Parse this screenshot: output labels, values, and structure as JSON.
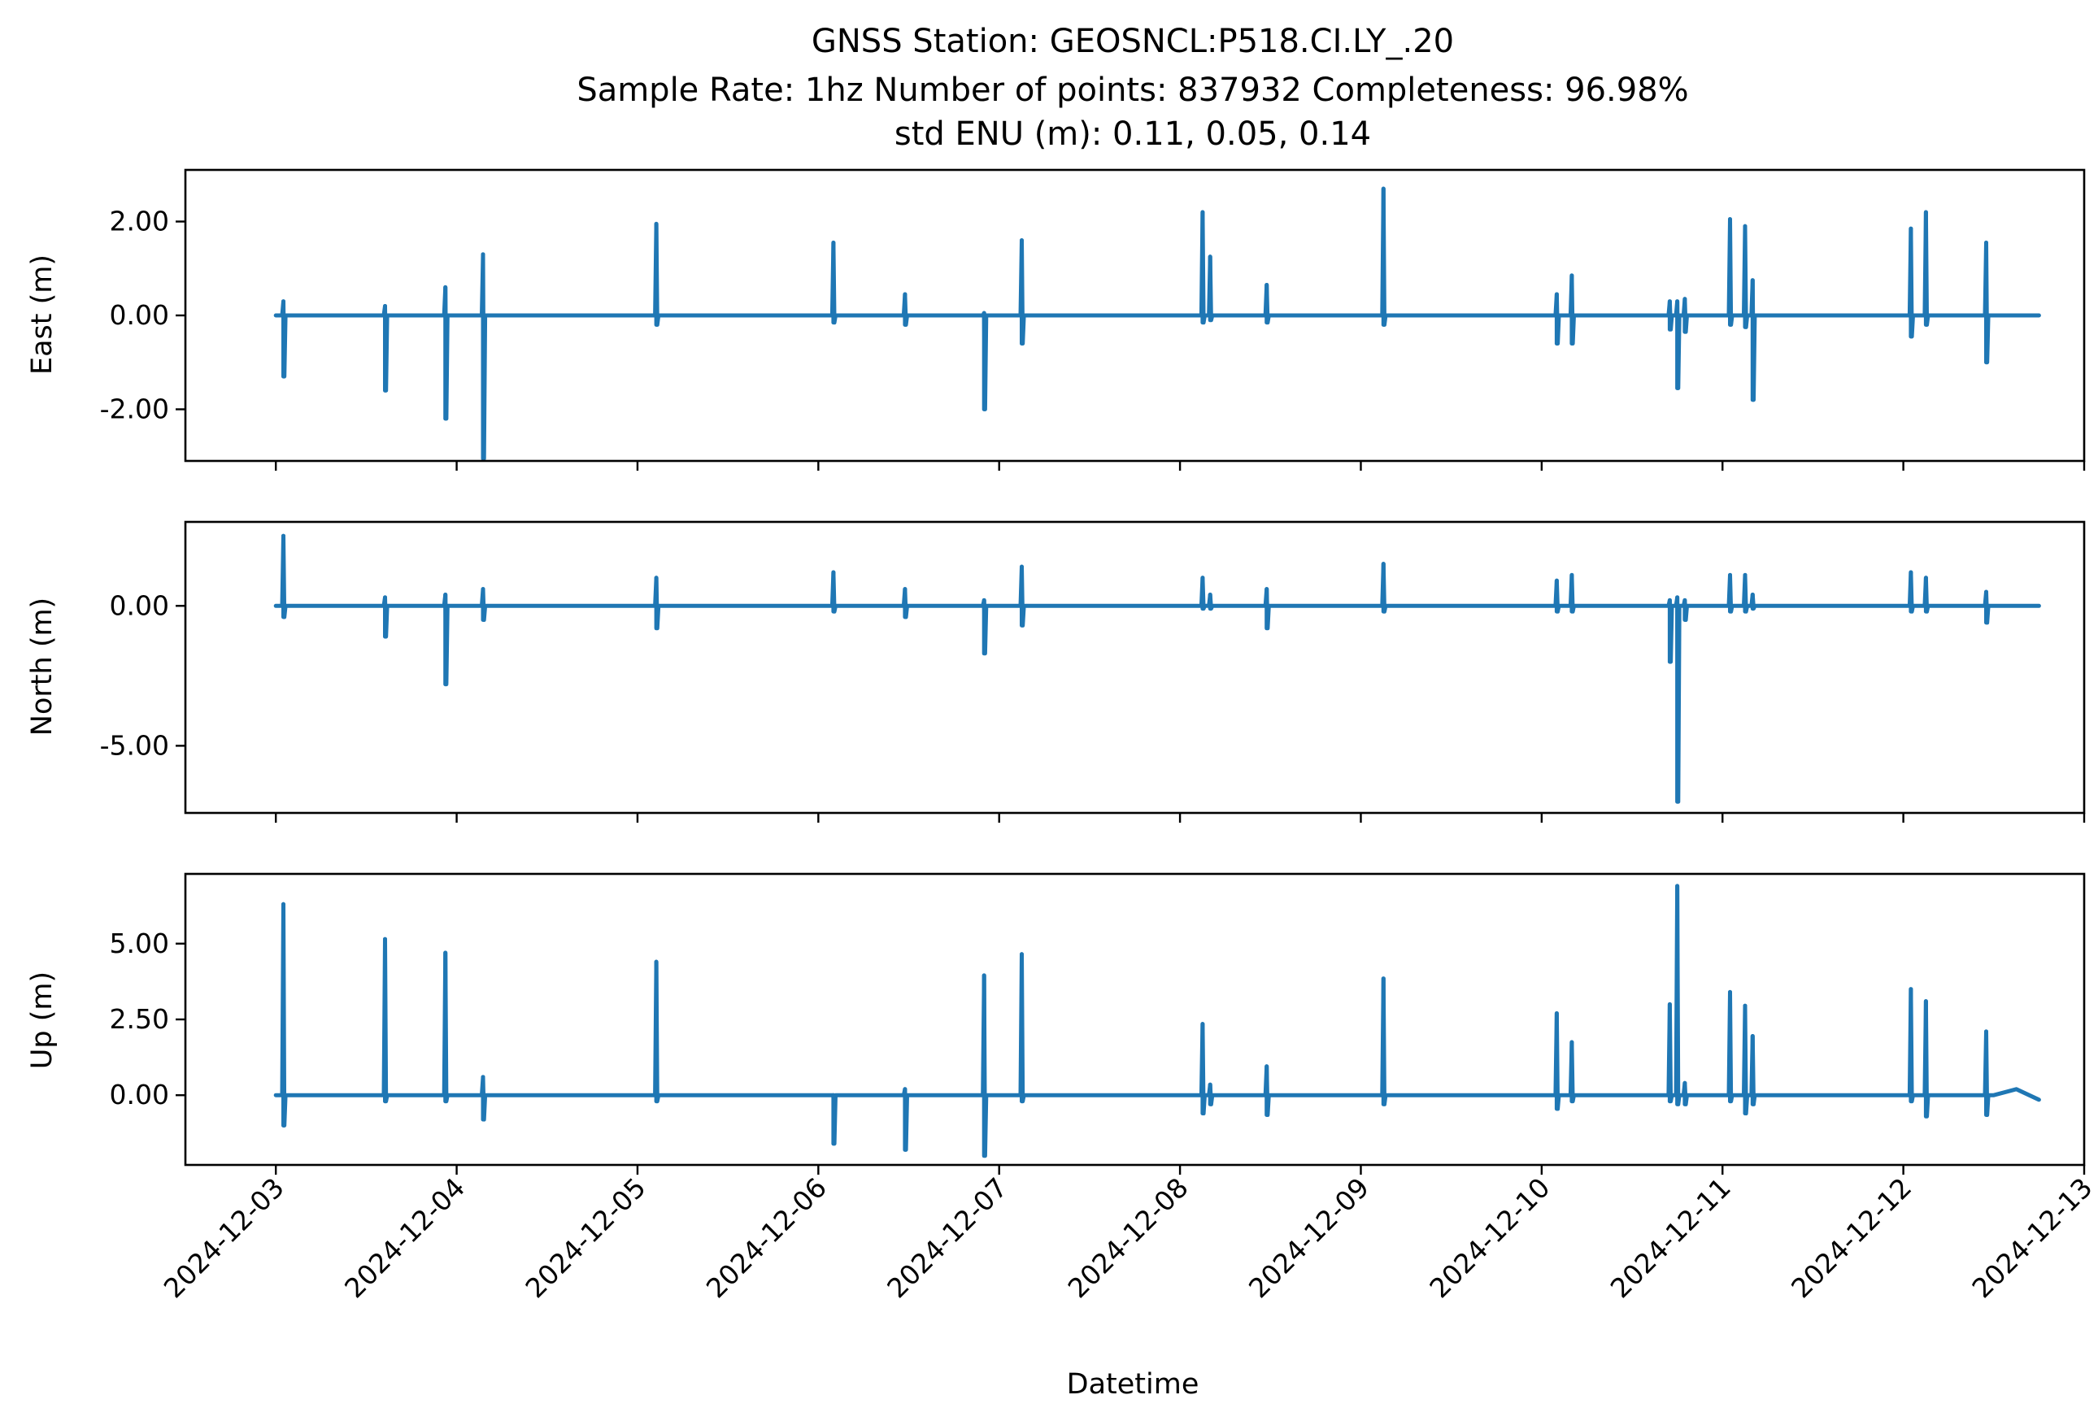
{
  "figure": {
    "title_lines": [
      "GNSS Station: GEOSNCL:P518.CI.LY_.20",
      "Sample Rate: 1hz   Number of points: 837932    Completeness:  96.98%",
      "std ENU (m):  0.11, 0.05, 0.14"
    ],
    "line_color": "#1f77b4"
  },
  "chart_data": [
    {
      "type": "line",
      "panel": "east",
      "ylabel": "East (m)",
      "xlabel": "",
      "ylim": [
        -3.1,
        3.1
      ],
      "yticks": [
        -2.0,
        0.0,
        2.0
      ],
      "ytick_labels": [
        "-2.00",
        "0.00",
        "2.00"
      ],
      "xlim": [
        "2024-12-02T12:00",
        "2024-12-13T00:00"
      ],
      "series": [
        {
          "baseline": 0.0,
          "end": "2024-12-12T18:00",
          "spikes": [
            {
              "t": "2024-12-03T01:00",
              "max": 0.3,
              "min": -1.3
            },
            {
              "t": "2024-12-03T14:30",
              "max": 0.2,
              "min": -1.6
            },
            {
              "t": "2024-12-03T22:30",
              "max": 0.6,
              "min": -2.2
            },
            {
              "t": "2024-12-04T03:30",
              "max": 1.3,
              "min": -3.05
            },
            {
              "t": "2024-12-05T02:30",
              "max": 1.95,
              "min": -0.2
            },
            {
              "t": "2024-12-06T02:00",
              "max": 1.55,
              "min": -0.15
            },
            {
              "t": "2024-12-06T11:30",
              "max": 0.45,
              "min": -0.2
            },
            {
              "t": "2024-12-06T22:00",
              "max": 0.05,
              "min": -2.0
            },
            {
              "t": "2024-12-07T03:00",
              "max": 1.6,
              "min": -0.6
            },
            {
              "t": "2024-12-08T03:00",
              "max": 2.2,
              "min": -0.15
            },
            {
              "t": "2024-12-08T04:00",
              "max": 1.25,
              "min": -0.1
            },
            {
              "t": "2024-12-08T11:30",
              "max": 0.65,
              "min": -0.15
            },
            {
              "t": "2024-12-09T03:00",
              "max": 2.7,
              "min": -0.2
            },
            {
              "t": "2024-12-10T02:00",
              "max": 0.45,
              "min": -0.6
            },
            {
              "t": "2024-12-10T04:00",
              "max": 0.85,
              "min": -0.6
            },
            {
              "t": "2024-12-10T17:00",
              "max": 0.3,
              "min": -0.3
            },
            {
              "t": "2024-12-10T18:00",
              "max": 0.3,
              "min": -1.55
            },
            {
              "t": "2024-12-10T19:00",
              "max": 0.35,
              "min": -0.35
            },
            {
              "t": "2024-12-11T01:00",
              "max": 2.05,
              "min": -0.2
            },
            {
              "t": "2024-12-11T03:00",
              "max": 1.9,
              "min": -0.25
            },
            {
              "t": "2024-12-11T04:00",
              "max": 0.75,
              "min": -1.8
            },
            {
              "t": "2024-12-12T01:00",
              "max": 1.85,
              "min": -0.45
            },
            {
              "t": "2024-12-12T03:00",
              "max": 2.2,
              "min": -0.2
            },
            {
              "t": "2024-12-12T11:00",
              "max": 1.55,
              "min": -1.0
            }
          ]
        }
      ]
    },
    {
      "type": "line",
      "panel": "north",
      "ylabel": "North (m)",
      "xlabel": "",
      "ylim": [
        -7.4,
        3.0
      ],
      "yticks": [
        -5.0,
        0.0
      ],
      "ytick_labels": [
        "-5.00",
        "0.00"
      ],
      "xlim": [
        "2024-12-02T12:00",
        "2024-12-13T00:00"
      ],
      "series": [
        {
          "baseline": 0.0,
          "end": "2024-12-12T18:00",
          "spikes": [
            {
              "t": "2024-12-03T01:00",
              "max": 2.5,
              "min": -0.4
            },
            {
              "t": "2024-12-03T14:30",
              "max": 0.3,
              "min": -1.1
            },
            {
              "t": "2024-12-03T22:30",
              "max": 0.4,
              "min": -2.8
            },
            {
              "t": "2024-12-04T03:30",
              "max": 0.6,
              "min": -0.5
            },
            {
              "t": "2024-12-05T02:30",
              "max": 1.0,
              "min": -0.8
            },
            {
              "t": "2024-12-06T02:00",
              "max": 1.2,
              "min": -0.2
            },
            {
              "t": "2024-12-06T11:30",
              "max": 0.6,
              "min": -0.4
            },
            {
              "t": "2024-12-06T22:00",
              "max": 0.2,
              "min": -1.7
            },
            {
              "t": "2024-12-07T03:00",
              "max": 1.4,
              "min": -0.7
            },
            {
              "t": "2024-12-08T03:00",
              "max": 1.0,
              "min": -0.1
            },
            {
              "t": "2024-12-08T04:00",
              "max": 0.4,
              "min": -0.1
            },
            {
              "t": "2024-12-08T11:30",
              "max": 0.6,
              "min": -0.8
            },
            {
              "t": "2024-12-09T03:00",
              "max": 1.5,
              "min": -0.2
            },
            {
              "t": "2024-12-10T02:00",
              "max": 0.9,
              "min": -0.2
            },
            {
              "t": "2024-12-10T04:00",
              "max": 1.1,
              "min": -0.2
            },
            {
              "t": "2024-12-10T17:00",
              "max": 0.2,
              "min": -2.0
            },
            {
              "t": "2024-12-10T18:00",
              "max": 0.3,
              "min": -7.0
            },
            {
              "t": "2024-12-10T19:00",
              "max": 0.2,
              "min": -0.5
            },
            {
              "t": "2024-12-11T01:00",
              "max": 1.1,
              "min": -0.2
            },
            {
              "t": "2024-12-11T03:00",
              "max": 1.1,
              "min": -0.2
            },
            {
              "t": "2024-12-11T04:00",
              "max": 0.4,
              "min": -0.1
            },
            {
              "t": "2024-12-12T01:00",
              "max": 1.2,
              "min": -0.2
            },
            {
              "t": "2024-12-12T03:00",
              "max": 1.0,
              "min": -0.2
            },
            {
              "t": "2024-12-12T11:00",
              "max": 0.5,
              "min": -0.6
            }
          ]
        }
      ]
    },
    {
      "type": "line",
      "panel": "up",
      "ylabel": "Up (m)",
      "xlabel": "Datetime",
      "ylim": [
        -2.3,
        7.3
      ],
      "yticks": [
        0.0,
        2.5,
        5.0
      ],
      "ytick_labels": [
        "0.00",
        "2.50",
        "5.00"
      ],
      "xlim": [
        "2024-12-02T12:00",
        "2024-12-13T00:00"
      ],
      "xticks": [
        "2024-12-03",
        "2024-12-04",
        "2024-12-05",
        "2024-12-06",
        "2024-12-07",
        "2024-12-08",
        "2024-12-09",
        "2024-12-10",
        "2024-12-11",
        "2024-12-12",
        "2024-12-13"
      ],
      "series": [
        {
          "baseline": 0.0,
          "end": "2024-12-12T18:00",
          "end_value": -0.15,
          "spikes": [
            {
              "t": "2024-12-03T01:00",
              "max": 6.3,
              "min": -1.0
            },
            {
              "t": "2024-12-03T14:30",
              "max": 5.15,
              "min": -0.2
            },
            {
              "t": "2024-12-03T22:30",
              "max": 4.7,
              "min": -0.2
            },
            {
              "t": "2024-12-04T03:30",
              "max": 0.6,
              "min": -0.8
            },
            {
              "t": "2024-12-05T02:30",
              "max": 4.4,
              "min": -0.2
            },
            {
              "t": "2024-12-06T02:00",
              "max": 0.0,
              "min": -1.6
            },
            {
              "t": "2024-12-06T11:30",
              "max": 0.2,
              "min": -1.8
            },
            {
              "t": "2024-12-06T22:00",
              "max": 3.95,
              "min": -2.0
            },
            {
              "t": "2024-12-07T03:00",
              "max": 4.65,
              "min": -0.2
            },
            {
              "t": "2024-12-08T03:00",
              "max": 2.35,
              "min": -0.6
            },
            {
              "t": "2024-12-08T04:00",
              "max": 0.35,
              "min": -0.3
            },
            {
              "t": "2024-12-08T11:30",
              "max": 0.95,
              "min": -0.65
            },
            {
              "t": "2024-12-09T03:00",
              "max": 3.85,
              "min": -0.3
            },
            {
              "t": "2024-12-10T02:00",
              "max": 2.7,
              "min": -0.45
            },
            {
              "t": "2024-12-10T04:00",
              "max": 1.75,
              "min": -0.2
            },
            {
              "t": "2024-12-10T17:00",
              "max": 3.0,
              "min": -0.2
            },
            {
              "t": "2024-12-10T18:00",
              "max": 6.9,
              "min": -0.3
            },
            {
              "t": "2024-12-10T19:00",
              "max": 0.4,
              "min": -0.3
            },
            {
              "t": "2024-12-11T01:00",
              "max": 3.4,
              "min": -0.2
            },
            {
              "t": "2024-12-11T03:00",
              "max": 2.95,
              "min": -0.6
            },
            {
              "t": "2024-12-11T04:00",
              "max": 1.95,
              "min": -0.3
            },
            {
              "t": "2024-12-12T01:00",
              "max": 3.5,
              "min": -0.2
            },
            {
              "t": "2024-12-12T03:00",
              "max": 3.1,
              "min": -0.7
            },
            {
              "t": "2024-12-12T11:00",
              "max": 2.1,
              "min": -0.65
            }
          ]
        }
      ]
    }
  ]
}
